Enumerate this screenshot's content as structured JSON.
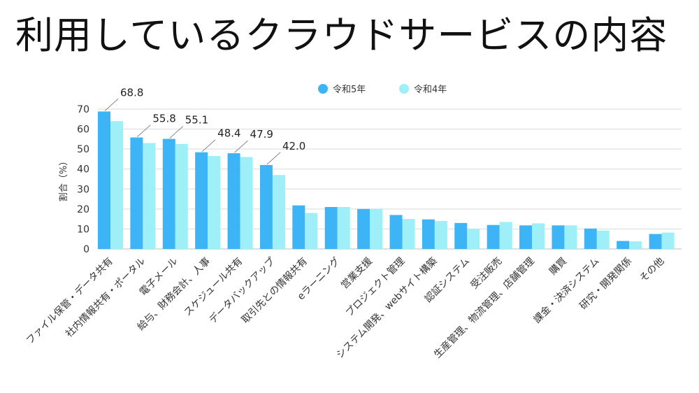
{
  "title": "利用しているクラウドサービスの内容",
  "chart_data": {
    "type": "bar",
    "title": "利用しているクラウドサービスの内容",
    "ylabel": "割合（%）",
    "xlabel": "",
    "ylim": [
      0,
      70
    ],
    "yticks": [
      0,
      10,
      20,
      30,
      40,
      50,
      60,
      70
    ],
    "grid": true,
    "legend_position": "top",
    "categories": [
      "ファイル保管・データ共有",
      "社内情報共有・ポータル",
      "電子メール",
      "給与、財務会計、人事",
      "スケジュール共有",
      "データバックアップ",
      "取引先との情報共有",
      "eラーニング",
      "営業支援",
      "プロジェクト管理",
      "システム開発、webサイト構築",
      "認証システム",
      "受注販売",
      "生産管理、物流管理、店舗管理",
      "購買",
      "課金・決済システム",
      "研究・開発関係",
      "その他"
    ],
    "series": [
      {
        "name": "令和5年",
        "color": "#3cb4f5",
        "values": [
          68.8,
          55.8,
          55.1,
          48.4,
          47.9,
          42.0,
          21.8,
          21.0,
          20.0,
          17.0,
          14.8,
          13.0,
          12.0,
          11.8,
          11.8,
          10.2,
          4.0,
          7.5
        ]
      },
      {
        "name": "令和4年",
        "color": "#9eeff7",
        "values": [
          64.0,
          53.0,
          52.5,
          46.5,
          46.0,
          37.0,
          18.0,
          21.0,
          20.0,
          15.0,
          14.0,
          10.0,
          13.5,
          12.8,
          11.8,
          9.2,
          3.8,
          8.2
        ]
      }
    ],
    "data_labels": [
      {
        "category_index": 0,
        "text": "68.8"
      },
      {
        "category_index": 1,
        "text": "55.8"
      },
      {
        "category_index": 2,
        "text": "55.1"
      },
      {
        "category_index": 3,
        "text": "48.4"
      },
      {
        "category_index": 4,
        "text": "47.9"
      },
      {
        "category_index": 5,
        "text": "42.0"
      }
    ]
  }
}
